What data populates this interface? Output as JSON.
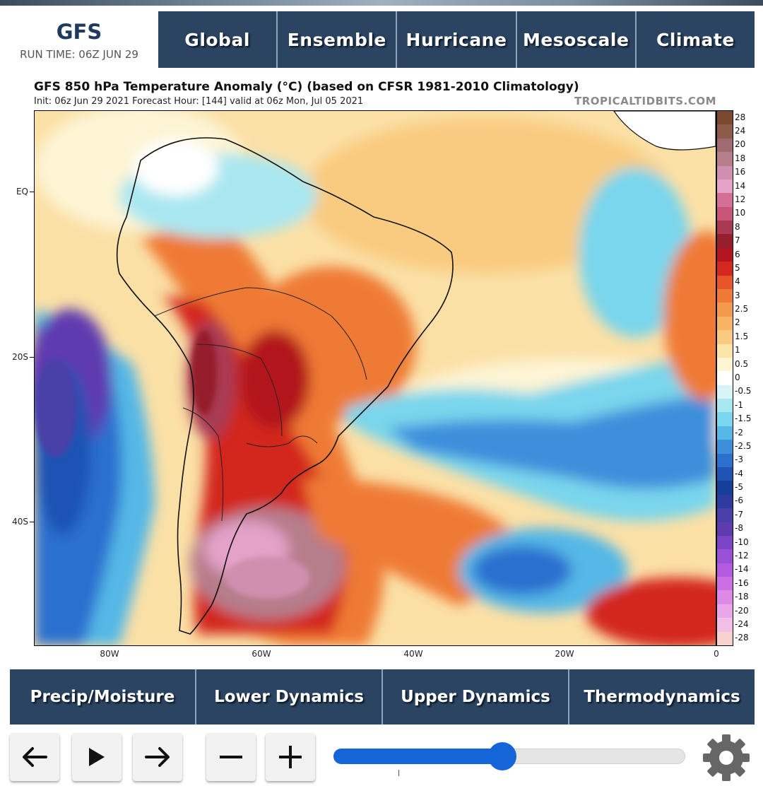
{
  "brand": {
    "title": "GFS",
    "run_time": "RUN TIME: 06Z JUN 29"
  },
  "top_nav": [
    "Global",
    "Ensemble",
    "Hurricane",
    "Mesoscale",
    "Climate"
  ],
  "map": {
    "title": "GFS 850 hPa Temperature Anomaly (°C) (based on CFSR 1981-2010 Climatology)",
    "subtitle": "Init: 06z Jun 29 2021   Forecast Hour: [144]   valid at 06z Mon, Jul 05 2021",
    "watermark": "TROPICALTIDBITS.COM",
    "lat_labels": [
      "EQ",
      "20S",
      "40S"
    ],
    "lon_labels": [
      "80W",
      "60W",
      "40W",
      "20W",
      "0"
    ]
  },
  "colorbar": {
    "levels": [
      "28",
      "24",
      "20",
      "18",
      "16",
      "14",
      "12",
      "10",
      "8",
      "7",
      "6",
      "5",
      "4",
      "3",
      "2.5",
      "2",
      "1.5",
      "1",
      "0.5",
      "0",
      "-0.5",
      "-1",
      "-1.5",
      "-2",
      "-2.5",
      "-3",
      "-4",
      "-5",
      "-6",
      "-7",
      "-8",
      "-10",
      "-12",
      "-14",
      "-16",
      "-18",
      "-20",
      "-24",
      "-28"
    ],
    "colors": [
      "#7b4a2e",
      "#8d5b4a",
      "#a06b70",
      "#b67d8b",
      "#d08fae",
      "#e4a2c9",
      "#d46f96",
      "#c85478",
      "#a83a52",
      "#951f2a",
      "#b2151e",
      "#d3281f",
      "#e6552a",
      "#ef7a36",
      "#f49a4c",
      "#f7b462",
      "#f9cb80",
      "#fbe4a8",
      "#fdf4d4",
      "#ffffff",
      "#d8f4f7",
      "#a9e7f0",
      "#79d6ec",
      "#55b8e6",
      "#3d8fdb",
      "#2c6fcf",
      "#1f53b4",
      "#173e98",
      "#2f3a9e",
      "#4a3fa8",
      "#5f3bb0",
      "#7b44c6",
      "#9850d6",
      "#b45ae0",
      "#cd6fe4",
      "#dd8ae6",
      "#e9a6e8",
      "#f2c0e6",
      "#f8d2cf"
    ]
  },
  "bottom_nav": [
    "Precip/Moisture",
    "Lower Dynamics",
    "Upper Dynamics",
    "Thermodynamics"
  ],
  "controls": {
    "prev_icon": "arrow-left-icon",
    "play_icon": "play-icon",
    "next_icon": "arrow-right-icon",
    "zoom_out_icon": "minus-icon",
    "zoom_in_icon": "plus-icon",
    "settings_icon": "gear-icon",
    "timeline_position": 0.48
  }
}
